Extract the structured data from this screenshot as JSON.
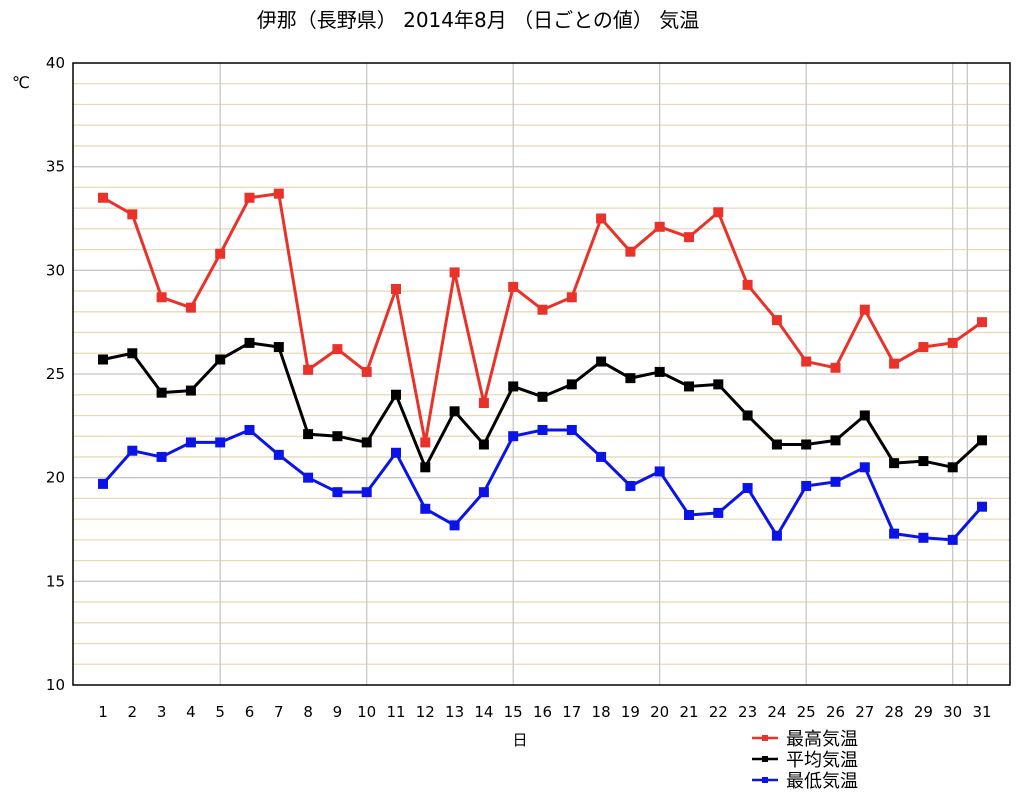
{
  "chart_data": {
    "type": "line",
    "title": "伊那（長野県） 2014年8月 （日ごとの値） 気温",
    "xlabel": "日",
    "ylabel": "℃",
    "ylim": [
      10,
      40
    ],
    "yticks": [
      10,
      15,
      20,
      25,
      30,
      35,
      40
    ],
    "grid": true,
    "legend_position": "bottom-right",
    "categories": [
      "1",
      "2",
      "3",
      "4",
      "5",
      "6",
      "7",
      "8",
      "9",
      "10",
      "11",
      "12",
      "13",
      "14",
      "15",
      "16",
      "17",
      "18",
      "19",
      "20",
      "21",
      "22",
      "23",
      "24",
      "25",
      "26",
      "27",
      "28",
      "29",
      "30",
      "31"
    ],
    "series": [
      {
        "name": "最高気温",
        "color": "#e8322a",
        "values": [
          33.5,
          32.7,
          28.7,
          28.2,
          30.8,
          33.5,
          33.7,
          25.2,
          26.2,
          25.1,
          29.1,
          21.7,
          29.9,
          23.6,
          29.2,
          28.1,
          28.7,
          32.5,
          30.9,
          32.1,
          31.6,
          32.8,
          29.3,
          27.6,
          25.6,
          25.3,
          28.1,
          25.5,
          26.3,
          26.5,
          27.5
        ]
      },
      {
        "name": "平均気温",
        "color": "#000000",
        "values": [
          25.7,
          26.0,
          24.1,
          24.2,
          25.7,
          26.5,
          26.3,
          22.1,
          22.0,
          21.7,
          24.0,
          20.5,
          23.2,
          21.6,
          24.4,
          23.9,
          24.5,
          25.6,
          24.8,
          25.1,
          24.4,
          24.5,
          23.0,
          21.6,
          21.6,
          21.8,
          23.0,
          20.7,
          20.8,
          20.5,
          21.8
        ]
      },
      {
        "name": "最低気温",
        "color": "#0a14e6",
        "values": [
          19.7,
          21.3,
          21.0,
          21.7,
          21.7,
          22.3,
          21.1,
          20.0,
          19.3,
          19.3,
          21.2,
          18.5,
          17.7,
          19.3,
          22.0,
          22.3,
          22.3,
          21.0,
          19.6,
          20.3,
          18.2,
          18.3,
          19.5,
          17.2,
          19.6,
          19.8,
          20.5,
          17.3,
          17.1,
          17.0,
          18.6
        ]
      }
    ]
  }
}
